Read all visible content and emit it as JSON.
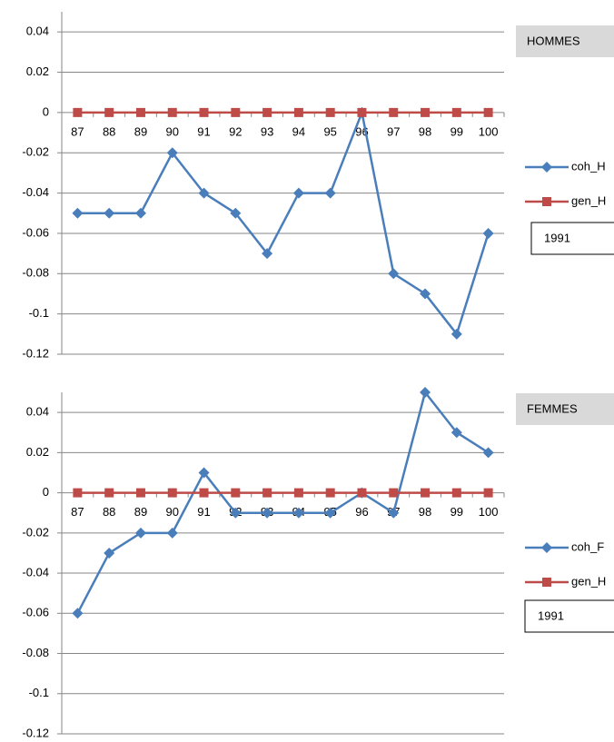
{
  "chart_data": [
    {
      "type": "line",
      "title": "HOMMES",
      "annotation": "1991",
      "categories": [
        "87",
        "88",
        "89",
        "90",
        "91",
        "92",
        "93",
        "94",
        "95",
        "96",
        "97",
        "98",
        "99",
        "100"
      ],
      "series": [
        {
          "name": "coh_H",
          "color": "#4a7ebb",
          "marker": "diamond",
          "values": [
            -0.05,
            -0.05,
            -0.05,
            -0.02,
            -0.04,
            -0.05,
            -0.07,
            -0.04,
            -0.04,
            0,
            -0.08,
            -0.09,
            -0.11,
            -0.06
          ]
        },
        {
          "name": "gen_H",
          "color": "#be4b48",
          "marker": "square",
          "values": [
            0,
            0,
            0,
            0,
            0,
            0,
            0,
            0,
            0,
            0,
            0,
            0,
            0,
            0
          ]
        }
      ],
      "ylim": [
        -0.12,
        0.05
      ],
      "yticks": [
        -0.12,
        -0.1,
        -0.08,
        -0.06,
        -0.04,
        -0.02,
        0,
        0.02,
        0.04
      ],
      "grid": true,
      "legend": "right"
    },
    {
      "type": "line",
      "title": "FEMMES",
      "annotation": "1991",
      "categories": [
        "87",
        "88",
        "89",
        "90",
        "91",
        "92",
        "93",
        "94",
        "95",
        "96",
        "97",
        "98",
        "99",
        "100"
      ],
      "series": [
        {
          "name": "coh_F",
          "color": "#4a7ebb",
          "marker": "diamond",
          "values": [
            -0.06,
            -0.03,
            -0.02,
            -0.02,
            0.01,
            -0.01,
            -0.01,
            -0.01,
            -0.01,
            0,
            -0.01,
            0.05,
            0.03,
            0.02
          ]
        },
        {
          "name": "gen_H",
          "color": "#be4b48",
          "marker": "square",
          "values": [
            0,
            0,
            0,
            0,
            0,
            0,
            0,
            0,
            0,
            0,
            0,
            0,
            0,
            0
          ]
        }
      ],
      "ylim": [
        -0.12,
        0.05
      ],
      "yticks": [
        -0.12,
        -0.1,
        -0.08,
        -0.06,
        -0.04,
        -0.02,
        0,
        0.02,
        0.04
      ],
      "grid": true,
      "legend": "right"
    }
  ]
}
